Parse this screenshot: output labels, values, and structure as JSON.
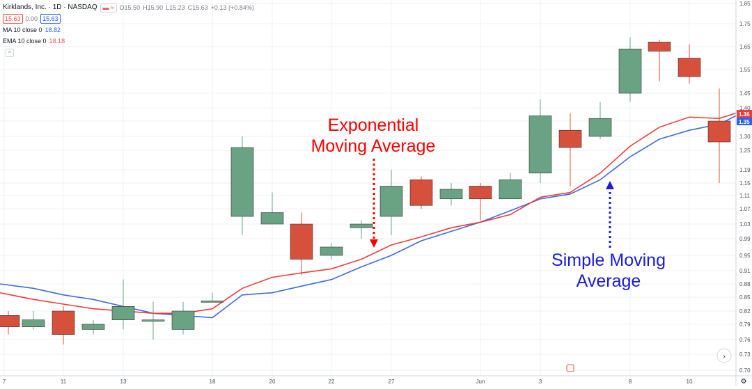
{
  "header": {
    "symbol": "Kirklands, Inc. · 1D · NASDAQ",
    "flags_label": "≈",
    "ohlc": {
      "o": "O15.50",
      "h": "H15.90",
      "l": "L15.23",
      "c": "C15.63",
      "chg": "+0.13 (+0.84%)"
    },
    "price_boxes": {
      "bid": "15.63",
      "spread": "0.00",
      "ask": "15.63"
    },
    "indicators": [
      {
        "name": "MA 10 close 0",
        "value": "18.82",
        "color": "#2962ff"
      },
      {
        "name": "EMA 10 close 0",
        "value": "18.18",
        "color": "#ef5350"
      }
    ]
  },
  "colors": {
    "up": "#6aa383",
    "down": "#d6503c",
    "ema": "#ef3b3b",
    "sma": "#3d6ae0",
    "grid": "#eef0f3",
    "axis_text": "#4a4e59",
    "annot_red": "#ff0000",
    "annot_blue": "#1a1adc"
  },
  "annotations": {
    "ema_label_line1": "Exponential",
    "ema_label_line2": "Moving Average",
    "sma_label_line1": "Simple Moving",
    "sma_label_line2": "Average"
  },
  "price_axis": {
    "ticks": [
      "1.85",
      "1.75",
      "1.65",
      "1.55",
      "1.45",
      "1.40",
      "1.35",
      "1.30",
      "1.25",
      "1.19",
      "1.15",
      "1.11",
      "1.07",
      "1.03",
      "0.99",
      "0.95",
      "0.91",
      "0.88",
      "0.85",
      "0.82",
      "0.79",
      "0.76",
      "0.73",
      "0.70"
    ],
    "ema_badge": "1.36",
    "sma_badge": "1.35"
  },
  "time_axis": {
    "ticks": [
      "7",
      "11",
      "13",
      "18",
      "20",
      "22",
      "27",
      "Jun",
      "3",
      "8",
      "10"
    ]
  },
  "chart_data": {
    "type": "candlestick",
    "candles": [
      {
        "o": 0.81,
        "h": 0.82,
        "l": 0.77,
        "c": 0.785
      },
      {
        "o": 0.785,
        "h": 0.82,
        "l": 0.78,
        "c": 0.8
      },
      {
        "o": 0.82,
        "h": 0.83,
        "l": 0.75,
        "c": 0.77
      },
      {
        "o": 0.78,
        "h": 0.8,
        "l": 0.77,
        "c": 0.79
      },
      {
        "o": 0.8,
        "h": 0.89,
        "l": 0.78,
        "c": 0.83
      },
      {
        "o": 0.8,
        "h": 0.84,
        "l": 0.76,
        "c": 0.8
      },
      {
        "o": 0.78,
        "h": 0.84,
        "l": 0.77,
        "c": 0.82
      },
      {
        "o": 0.84,
        "h": 0.86,
        "l": 0.84,
        "c": 0.842
      },
      {
        "o": 1.05,
        "h": 1.3,
        "l": 1.0,
        "c": 1.26
      },
      {
        "o": 1.03,
        "h": 1.12,
        "l": 1.03,
        "c": 1.06
      },
      {
        "o": 1.03,
        "h": 1.06,
        "l": 0.9,
        "c": 0.94
      },
      {
        "o": 0.95,
        "h": 0.98,
        "l": 0.94,
        "c": 0.97
      },
      {
        "o": 1.02,
        "h": 1.04,
        "l": 0.99,
        "c": 1.03
      },
      {
        "o": 1.05,
        "h": 1.19,
        "l": 1.0,
        "c": 1.14
      },
      {
        "o": 1.16,
        "h": 1.17,
        "l": 1.07,
        "c": 1.08
      },
      {
        "o": 1.1,
        "h": 1.15,
        "l": 1.08,
        "c": 1.13
      },
      {
        "o": 1.14,
        "h": 1.15,
        "l": 1.04,
        "c": 1.1
      },
      {
        "o": 1.1,
        "h": 1.18,
        "l": 1.1,
        "c": 1.16
      },
      {
        "o": 1.18,
        "h": 1.43,
        "l": 1.15,
        "c": 1.37
      },
      {
        "o": 1.32,
        "h": 1.38,
        "l": 1.14,
        "c": 1.26
      },
      {
        "o": 1.3,
        "h": 1.42,
        "l": 1.29,
        "c": 1.36
      },
      {
        "o": 1.45,
        "h": 1.69,
        "l": 1.42,
        "c": 1.64
      },
      {
        "o": 1.67,
        "h": 1.68,
        "l": 1.5,
        "c": 1.63
      },
      {
        "o": 1.6,
        "h": 1.66,
        "l": 1.49,
        "c": 1.52
      },
      {
        "o": 1.35,
        "h": 1.47,
        "l": 1.15,
        "c": 1.28
      }
    ],
    "ema": [
      0.86,
      0.845,
      0.835,
      0.825,
      0.82,
      0.815,
      0.815,
      0.825,
      0.87,
      0.895,
      0.905,
      0.915,
      0.94,
      0.975,
      0.995,
      1.02,
      1.035,
      1.055,
      1.105,
      1.12,
      1.18,
      1.265,
      1.33,
      1.365,
      1.36,
      1.38
    ],
    "sma": [
      0.88,
      0.87,
      0.855,
      0.845,
      0.83,
      0.815,
      0.81,
      0.805,
      0.855,
      0.86,
      0.875,
      0.89,
      0.92,
      0.95,
      0.985,
      1.01,
      1.035,
      1.065,
      1.1,
      1.115,
      1.16,
      1.23,
      1.29,
      1.32,
      1.34,
      1.37
    ]
  }
}
